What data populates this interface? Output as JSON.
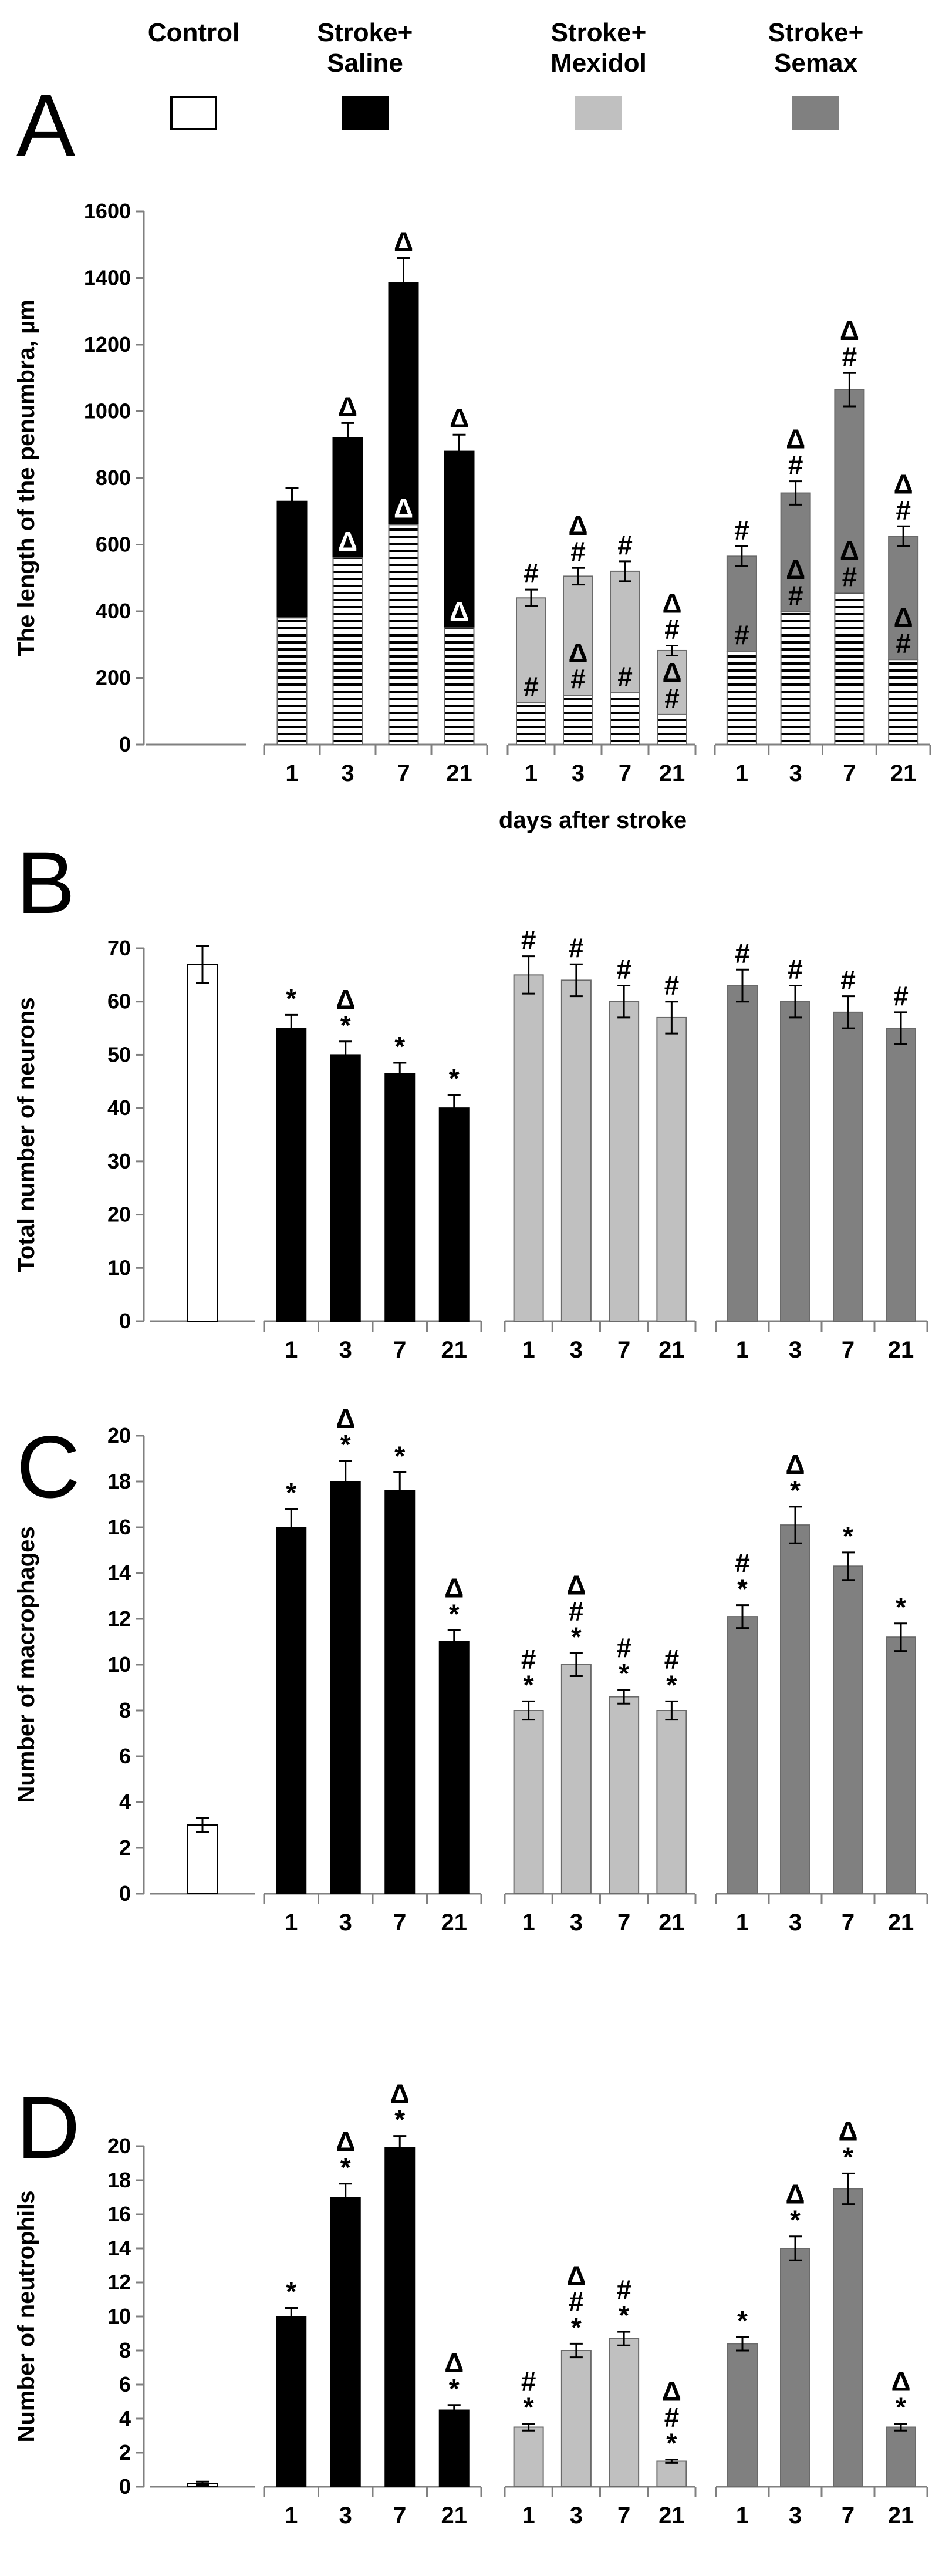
{
  "legend": [
    {
      "line1": "Control",
      "line2": "",
      "color": "#ffffff"
    },
    {
      "line1": "Stroke+",
      "line2": "Saline",
      "color": "#000000"
    },
    {
      "line1": "Stroke+",
      "line2": "Mexidol",
      "color": "#c0c0c0"
    },
    {
      "line1": "Stroke+",
      "line2": "Semax",
      "color": "#808080"
    }
  ],
  "colors": {
    "control": "#ffffff",
    "saline": "#000000",
    "mexidol": "#c0c0c0",
    "semax": "#808080"
  },
  "chart_data": [
    {
      "panel": "A",
      "type": "bar",
      "ylabel": "The length of the penumbra, µm",
      "xlabel": "days after stroke",
      "ylim": [
        0,
        1600
      ],
      "yticks": [
        0,
        200,
        400,
        600,
        800,
        1000,
        1200,
        1400,
        1600
      ],
      "groups": [
        {
          "name": "Control",
          "bars": []
        },
        {
          "name": "Stroke+Saline",
          "bars": [
            {
              "day": "1",
              "total": 730,
              "hatched": 380,
              "err": 40,
              "top_ann": [],
              "mid_ann": []
            },
            {
              "day": "3",
              "total": 920,
              "hatched": 560,
              "err": 45,
              "top_ann": [
                "Δ"
              ],
              "mid_ann": [
                "Δ"
              ]
            },
            {
              "day": "7",
              "total": 1385,
              "hatched": 660,
              "err": 75,
              "top_ann": [
                "Δ"
              ],
              "mid_ann": [
                "Δ"
              ]
            },
            {
              "day": "21",
              "total": 880,
              "hatched": 350,
              "err": 50,
              "top_ann": [
                "Δ"
              ],
              "mid_ann": [
                "Δ"
              ]
            }
          ]
        },
        {
          "name": "Stroke+Mexidol",
          "bars": [
            {
              "day": "1",
              "total": 440,
              "hatched": 125,
              "err": 25,
              "top_ann": [
                "#"
              ],
              "mid_ann": [
                "#"
              ]
            },
            {
              "day": "3",
              "total": 505,
              "hatched": 148,
              "err": 25,
              "top_ann": [
                "Δ",
                "#"
              ],
              "mid_ann": [
                "Δ",
                "#"
              ]
            },
            {
              "day": "7",
              "total": 520,
              "hatched": 155,
              "err": 30,
              "top_ann": [
                "#"
              ],
              "mid_ann": [
                "#"
              ]
            },
            {
              "day": "21",
              "total": 282,
              "hatched": 90,
              "err": 15,
              "top_ann": [
                "Δ",
                "#"
              ],
              "mid_ann": [
                "Δ",
                "#"
              ]
            }
          ]
        },
        {
          "name": "Stroke+Semax",
          "bars": [
            {
              "day": "1",
              "total": 565,
              "hatched": 280,
              "err": 30,
              "top_ann": [
                "#"
              ],
              "mid_ann": [
                "#"
              ]
            },
            {
              "day": "3",
              "total": 755,
              "hatched": 398,
              "err": 35,
              "top_ann": [
                "Δ",
                "#"
              ],
              "mid_ann": [
                "Δ",
                "#"
              ]
            },
            {
              "day": "7",
              "total": 1065,
              "hatched": 455,
              "err": 50,
              "top_ann": [
                "Δ",
                "#"
              ],
              "mid_ann": [
                "Δ",
                "#"
              ]
            },
            {
              "day": "21",
              "total": 625,
              "hatched": 255,
              "err": 30,
              "top_ann": [
                "Δ",
                "#"
              ],
              "mid_ann": [
                "Δ",
                "#"
              ]
            }
          ]
        }
      ]
    },
    {
      "panel": "B",
      "type": "bar",
      "ylabel": "Total number of neurons",
      "xlabel": "",
      "ylim": [
        0,
        70
      ],
      "yticks": [
        0,
        10,
        20,
        30,
        40,
        50,
        60,
        70
      ],
      "groups": [
        {
          "name": "Control",
          "bars": [
            {
              "day": "",
              "value": 67,
              "err": 3.5,
              "top_ann": []
            }
          ]
        },
        {
          "name": "Stroke+Saline",
          "bars": [
            {
              "day": "1",
              "value": 55,
              "err": 2.5,
              "top_ann": [
                "*"
              ]
            },
            {
              "day": "3",
              "value": 50,
              "err": 2.5,
              "top_ann": [
                "Δ",
                "*"
              ]
            },
            {
              "day": "7",
              "value": 46.5,
              "err": 2,
              "top_ann": [
                "*"
              ]
            },
            {
              "day": "21",
              "value": 40,
              "err": 2.5,
              "top_ann": [
                "*"
              ]
            }
          ]
        },
        {
          "name": "Stroke+Mexidol",
          "bars": [
            {
              "day": "1",
              "value": 65,
              "err": 3.5,
              "top_ann": [
                "#"
              ]
            },
            {
              "day": "3",
              "value": 64,
              "err": 3,
              "top_ann": [
                "#"
              ]
            },
            {
              "day": "7",
              "value": 60,
              "err": 3,
              "top_ann": [
                "#"
              ]
            },
            {
              "day": "21",
              "value": 57,
              "err": 3,
              "top_ann": [
                "#"
              ]
            }
          ]
        },
        {
          "name": "Stroke+Semax",
          "bars": [
            {
              "day": "1",
              "value": 63,
              "err": 3,
              "top_ann": [
                "#"
              ]
            },
            {
              "day": "3",
              "value": 60,
              "err": 3,
              "top_ann": [
                "#"
              ]
            },
            {
              "day": "7",
              "value": 58,
              "err": 3,
              "top_ann": [
                "#"
              ]
            },
            {
              "day": "21",
              "value": 55,
              "err": 3,
              "top_ann": [
                "#"
              ]
            }
          ]
        }
      ]
    },
    {
      "panel": "C",
      "type": "bar",
      "ylabel": "Number of macrophages",
      "xlabel": "",
      "ylim": [
        0,
        20
      ],
      "yticks": [
        0,
        2,
        4,
        6,
        8,
        10,
        12,
        14,
        16,
        18,
        20
      ],
      "groups": [
        {
          "name": "Control",
          "bars": [
            {
              "day": "",
              "value": 3,
              "err": 0.3,
              "top_ann": []
            }
          ]
        },
        {
          "name": "Stroke+Saline",
          "bars": [
            {
              "day": "1",
              "value": 16,
              "err": 0.8,
              "top_ann": [
                "*"
              ]
            },
            {
              "day": "3",
              "value": 18,
              "err": 0.9,
              "top_ann": [
                "Δ",
                "*"
              ]
            },
            {
              "day": "7",
              "value": 17.6,
              "err": 0.8,
              "top_ann": [
                "*"
              ]
            },
            {
              "day": "21",
              "value": 11,
              "err": 0.5,
              "top_ann": [
                "Δ",
                "*"
              ]
            }
          ]
        },
        {
          "name": "Stroke+Mexidol",
          "bars": [
            {
              "day": "1",
              "value": 8,
              "err": 0.4,
              "top_ann": [
                "#",
                "*"
              ]
            },
            {
              "day": "3",
              "value": 10,
              "err": 0.5,
              "top_ann": [
                "Δ",
                "#",
                "*"
              ]
            },
            {
              "day": "7",
              "value": 8.6,
              "err": 0.3,
              "top_ann": [
                "#",
                "*"
              ]
            },
            {
              "day": "21",
              "value": 8,
              "err": 0.4,
              "top_ann": [
                "#",
                "*"
              ]
            }
          ]
        },
        {
          "name": "Stroke+Semax",
          "bars": [
            {
              "day": "1",
              "value": 12.1,
              "err": 0.5,
              "top_ann": [
                "#",
                "*"
              ]
            },
            {
              "day": "3",
              "value": 16.1,
              "err": 0.8,
              "top_ann": [
                "Δ",
                "*"
              ]
            },
            {
              "day": "7",
              "value": 14.3,
              "err": 0.6,
              "top_ann": [
                "*"
              ]
            },
            {
              "day": "21",
              "value": 11.2,
              "err": 0.6,
              "top_ann": [
                "*"
              ]
            }
          ]
        }
      ]
    },
    {
      "panel": "D",
      "type": "bar",
      "ylabel": "Number of neutrophils",
      "xlabel": "",
      "ylim": [
        0,
        20
      ],
      "yticks": [
        0,
        2,
        4,
        6,
        8,
        10,
        12,
        14,
        16,
        18,
        20
      ],
      "groups": [
        {
          "name": "Control",
          "bars": [
            {
              "day": "",
              "value": 0.2,
              "err": 0.1,
              "top_ann": []
            }
          ]
        },
        {
          "name": "Stroke+Saline",
          "bars": [
            {
              "day": "1",
              "value": 10,
              "err": 0.5,
              "top_ann": [
                "*"
              ]
            },
            {
              "day": "3",
              "value": 17,
              "err": 0.8,
              "top_ann": [
                "Δ",
                "*"
              ]
            },
            {
              "day": "7",
              "value": 19.9,
              "err": 0.7,
              "top_ann": [
                "Δ",
                "*"
              ]
            },
            {
              "day": "21",
              "value": 4.5,
              "err": 0.3,
              "top_ann": [
                "Δ",
                "*"
              ]
            }
          ]
        },
        {
          "name": "Stroke+Mexidol",
          "bars": [
            {
              "day": "1",
              "value": 3.5,
              "err": 0.2,
              "top_ann": [
                "#",
                "*"
              ]
            },
            {
              "day": "3",
              "value": 8,
              "err": 0.4,
              "top_ann": [
                "Δ",
                "#",
                "*"
              ]
            },
            {
              "day": "7",
              "value": 8.7,
              "err": 0.4,
              "top_ann": [
                "#",
                "*"
              ]
            },
            {
              "day": "21",
              "value": 1.5,
              "err": 0.1,
              "top_ann": [
                "Δ",
                "#",
                "*"
              ]
            }
          ]
        },
        {
          "name": "Stroke+Semax",
          "bars": [
            {
              "day": "1",
              "value": 8.4,
              "err": 0.4,
              "top_ann": [
                "*"
              ]
            },
            {
              "day": "3",
              "value": 14,
              "err": 0.7,
              "top_ann": [
                "Δ",
                "*"
              ]
            },
            {
              "day": "7",
              "value": 17.5,
              "err": 0.9,
              "top_ann": [
                "Δ",
                "*"
              ]
            },
            {
              "day": "21",
              "value": 3.5,
              "err": 0.2,
              "top_ann": [
                "Δ",
                "*"
              ]
            }
          ]
        }
      ]
    }
  ]
}
